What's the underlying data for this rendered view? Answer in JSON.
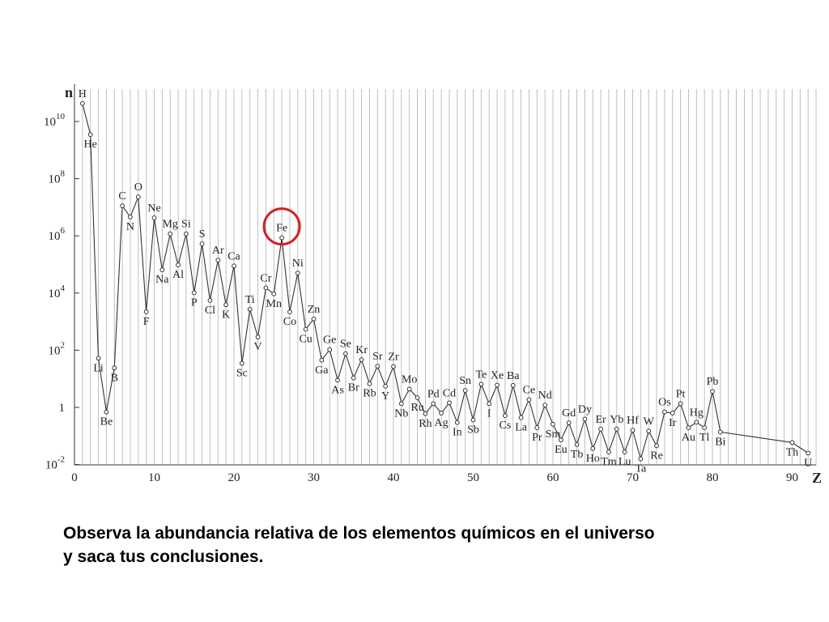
{
  "chart_data": {
    "type": "line",
    "xlabel": "Z",
    "ylabel": "n",
    "xlim": [
      0,
      93
    ],
    "ylim_log10": [
      -2,
      11
    ],
    "y_scale": "log",
    "grid": "vertical lines at every integer Z",
    "x_ticks": [
      {
        "v": 0,
        "label": "0"
      },
      {
        "v": 10,
        "label": "10"
      },
      {
        "v": 20,
        "label": "20"
      },
      {
        "v": 30,
        "label": "30"
      },
      {
        "v": 40,
        "label": "40"
      },
      {
        "v": 50,
        "label": "50"
      },
      {
        "v": 60,
        "label": "60"
      },
      {
        "v": 70,
        "label": "70"
      },
      {
        "v": 80,
        "label": "80"
      },
      {
        "v": 90,
        "label": "90"
      }
    ],
    "y_ticks": [
      {
        "v": -2,
        "base": "10",
        "exp": "-2"
      },
      {
        "v": 0,
        "base": "1",
        "exp": ""
      },
      {
        "v": 2,
        "base": "10",
        "exp": "2"
      },
      {
        "v": 4,
        "base": "10",
        "exp": "4"
      },
      {
        "v": 6,
        "base": "10",
        "exp": "6"
      },
      {
        "v": 8,
        "base": "10",
        "exp": "8"
      },
      {
        "v": 10,
        "base": "10",
        "exp": "10"
      }
    ],
    "highlight_color": "#d42020",
    "highlight_element": "Fe",
    "points": [
      {
        "z": 1,
        "sym": "H",
        "log_n": 10.63
      },
      {
        "z": 2,
        "sym": "He",
        "log_n": 9.54
      },
      {
        "z": 3,
        "sym": "Li",
        "log_n": 1.72
      },
      {
        "z": 4,
        "sym": "Be",
        "log_n": -0.16
      },
      {
        "z": 5,
        "sym": "B",
        "log_n": 1.38
      },
      {
        "z": 6,
        "sym": "C",
        "log_n": 7.05
      },
      {
        "z": 7,
        "sym": "N",
        "log_n": 6.66
      },
      {
        "z": 8,
        "sym": "O",
        "log_n": 7.36
      },
      {
        "z": 9,
        "sym": "F",
        "log_n": 3.34
      },
      {
        "z": 10,
        "sym": "Ne",
        "log_n": 6.63
      },
      {
        "z": 11,
        "sym": "Na",
        "log_n": 4.81
      },
      {
        "z": 12,
        "sym": "Mg",
        "log_n": 6.07
      },
      {
        "z": 13,
        "sym": "Al",
        "log_n": 4.98
      },
      {
        "z": 14,
        "sym": "Si",
        "log_n": 6.07
      },
      {
        "z": 15,
        "sym": "P",
        "log_n": 4.01
      },
      {
        "z": 16,
        "sym": "S",
        "log_n": 5.72
      },
      {
        "z": 17,
        "sym": "Cl",
        "log_n": 3.74
      },
      {
        "z": 18,
        "sym": "Ar",
        "log_n": 5.15
      },
      {
        "z": 19,
        "sym": "K",
        "log_n": 3.59
      },
      {
        "z": 20,
        "sym": "Ca",
        "log_n": 4.95
      },
      {
        "z": 21,
        "sym": "Sc",
        "log_n": 1.54
      },
      {
        "z": 22,
        "sym": "Ti",
        "log_n": 3.43
      },
      {
        "z": 23,
        "sym": "V",
        "log_n": 2.46
      },
      {
        "z": 24,
        "sym": "Cr",
        "log_n": 4.18
      },
      {
        "z": 25,
        "sym": "Mn",
        "log_n": 3.97
      },
      {
        "z": 26,
        "sym": "Fe",
        "log_n": 5.93
      },
      {
        "z": 27,
        "sym": "Co",
        "log_n": 3.34
      },
      {
        "z": 28,
        "sym": "Ni",
        "log_n": 4.7
      },
      {
        "z": 29,
        "sym": "Cu",
        "log_n": 2.73
      },
      {
        "z": 30,
        "sym": "Zn",
        "log_n": 3.09
      },
      {
        "z": 31,
        "sym": "Ga",
        "log_n": 1.65
      },
      {
        "z": 32,
        "sym": "Ge",
        "log_n": 2.02
      },
      {
        "z": 33,
        "sym": "As",
        "log_n": 0.95
      },
      {
        "z": 34,
        "sym": "Se",
        "log_n": 1.88
      },
      {
        "z": 35,
        "sym": "Br",
        "log_n": 1.03
      },
      {
        "z": 36,
        "sym": "Kr",
        "log_n": 1.67
      },
      {
        "z": 37,
        "sym": "Rb",
        "log_n": 0.83
      },
      {
        "z": 38,
        "sym": "Sr",
        "log_n": 1.44
      },
      {
        "z": 39,
        "sym": "Y",
        "log_n": 0.74
      },
      {
        "z": 40,
        "sym": "Zr",
        "log_n": 1.43
      },
      {
        "z": 41,
        "sym": "Nb",
        "log_n": 0.13
      },
      {
        "z": 42,
        "sym": "Mo",
        "log_n": 0.64
      },
      {
        "z": 43,
        "sym": "Ru",
        "log_n": 0.34
      },
      {
        "z": 44,
        "sym": "Rh",
        "log_n": -0.22
      },
      {
        "z": 45,
        "sym": "Pd",
        "log_n": 0.13
      },
      {
        "z": 46,
        "sym": "Ag",
        "log_n": -0.2
      },
      {
        "z": 47,
        "sym": "Cd",
        "log_n": 0.16
      },
      {
        "z": 48,
        "sym": "In",
        "log_n": -0.53
      },
      {
        "z": 49,
        "sym": "Sn",
        "log_n": 0.59
      },
      {
        "z": 50,
        "sym": "Sb",
        "log_n": -0.44
      },
      {
        "z": 51,
        "sym": "Te",
        "log_n": 0.81
      },
      {
        "z": 52,
        "sym": "I",
        "log_n": 0.13
      },
      {
        "z": 53,
        "sym": "Xe",
        "log_n": 0.78
      },
      {
        "z": 54,
        "sym": "Cs",
        "log_n": -0.29
      },
      {
        "z": 55,
        "sym": "Ba",
        "log_n": 0.77
      },
      {
        "z": 56,
        "sym": "La",
        "log_n": -0.36
      },
      {
        "z": 57,
        "sym": "Ce",
        "log_n": 0.27
      },
      {
        "z": 58,
        "sym": "Pr",
        "log_n": -0.71
      },
      {
        "z": 59,
        "sym": "Nd",
        "log_n": 0.08
      },
      {
        "z": 60,
        "sym": "Sm",
        "log_n": -0.59
      },
      {
        "z": 61,
        "sym": "Eu",
        "log_n": -1.14
      },
      {
        "z": 62,
        "sym": "Gd",
        "log_n": -0.54
      },
      {
        "z": 63,
        "sym": "Tb",
        "log_n": -1.3
      },
      {
        "z": 64,
        "sym": "Dy",
        "log_n": -0.41
      },
      {
        "z": 65,
        "sym": "Ho",
        "log_n": -1.44
      },
      {
        "z": 66,
        "sym": "Er",
        "log_n": -0.76
      },
      {
        "z": 67,
        "sym": "Tm",
        "log_n": -1.56
      },
      {
        "z": 68,
        "sym": "Yb",
        "log_n": -0.76
      },
      {
        "z": 69,
        "sym": "Lu",
        "log_n": -1.56
      },
      {
        "z": 70,
        "sym": "Hf",
        "log_n": -0.8
      },
      {
        "z": 71,
        "sym": "Ta",
        "log_n": -1.8
      },
      {
        "z": 72,
        "sym": "W",
        "log_n": -0.83
      },
      {
        "z": 73,
        "sym": "Re",
        "log_n": -1.34
      },
      {
        "z": 74,
        "sym": "Os",
        "log_n": -0.16
      },
      {
        "z": 75,
        "sym": "Ir",
        "log_n": -0.2
      },
      {
        "z": 76,
        "sym": "Pt",
        "log_n": 0.13
      },
      {
        "z": 77,
        "sym": "Au",
        "log_n": -0.71
      },
      {
        "z": 78,
        "sym": "Hg",
        "log_n": -0.52
      },
      {
        "z": 79,
        "sym": "Tl",
        "log_n": -0.71
      },
      {
        "z": 80,
        "sym": "Pb",
        "log_n": 0.56
      },
      {
        "z": 81,
        "sym": "Bi",
        "log_n": -0.86
      },
      {
        "z": 90,
        "sym": "Th",
        "log_n": -1.23
      },
      {
        "z": 92,
        "sym": "U",
        "log_n": -1.6
      }
    ]
  },
  "caption": {
    "line1": "Observa la abundancia relativa de los elementos químicos en el universo",
    "line2": "y saca tus conclusiones."
  }
}
